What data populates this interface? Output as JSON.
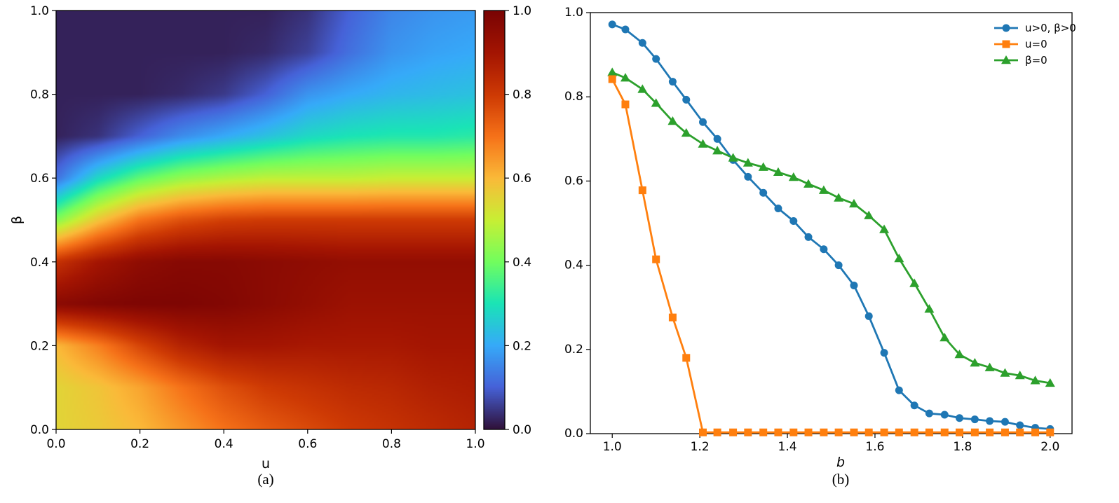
{
  "chart_data": [
    {
      "type": "heatmap",
      "caption": "(a)",
      "xlabel": "u",
      "ylabel": "β",
      "xlim": [
        0,
        1
      ],
      "ylim": [
        0,
        1
      ],
      "xticks": [
        "0.0",
        "0.2",
        "0.4",
        "0.6",
        "0.8",
        "1.0"
      ],
      "yticks": [
        "0.0",
        "0.2",
        "0.4",
        "0.6",
        "0.8",
        "1.0"
      ],
      "colorbar": {
        "min": 0,
        "max": 1,
        "ticks": [
          "0.0",
          "0.2",
          "0.4",
          "0.6",
          "0.8",
          "1.0"
        ],
        "colormap": "turbo"
      },
      "grid_u": [
        0.0,
        0.1,
        0.2,
        0.3,
        0.4,
        0.5,
        0.6,
        0.7,
        0.8,
        0.9,
        1.0
      ],
      "grid_beta": [
        0.0,
        0.1,
        0.2,
        0.3,
        0.4,
        0.5,
        0.6,
        0.7,
        0.8,
        0.9,
        1.0
      ],
      "values": [
        [
          0.55,
          0.57,
          0.6,
          0.65,
          0.7,
          0.74,
          0.77,
          0.8,
          0.82,
          0.84,
          0.86
        ],
        [
          0.55,
          0.58,
          0.63,
          0.7,
          0.76,
          0.8,
          0.82,
          0.84,
          0.85,
          0.87,
          0.88
        ],
        [
          0.6,
          0.68,
          0.78,
          0.86,
          0.9,
          0.9,
          0.89,
          0.89,
          0.89,
          0.9,
          0.9
        ],
        [
          0.96,
          0.98,
          0.99,
          0.99,
          0.98,
          0.96,
          0.94,
          0.92,
          0.92,
          0.92,
          0.92
        ],
        [
          0.82,
          0.9,
          0.95,
          0.97,
          0.97,
          0.96,
          0.95,
          0.94,
          0.94,
          0.94,
          0.94
        ],
        [
          0.42,
          0.58,
          0.7,
          0.76,
          0.79,
          0.8,
          0.8,
          0.8,
          0.8,
          0.8,
          0.8
        ],
        [
          0.12,
          0.28,
          0.38,
          0.44,
          0.47,
          0.49,
          0.49,
          0.49,
          0.5,
          0.5,
          0.5
        ],
        [
          0.02,
          0.04,
          0.1,
          0.16,
          0.2,
          0.24,
          0.28,
          0.3,
          0.31,
          0.31,
          0.32
        ],
        [
          0.02,
          0.02,
          0.02,
          0.03,
          0.05,
          0.1,
          0.17,
          0.2,
          0.22,
          0.23,
          0.24
        ],
        [
          0.02,
          0.02,
          0.02,
          0.02,
          0.02,
          0.03,
          0.06,
          0.12,
          0.17,
          0.19,
          0.2
        ],
        [
          0.02,
          0.02,
          0.02,
          0.02,
          0.02,
          0.02,
          0.04,
          0.1,
          0.15,
          0.17,
          0.18
        ]
      ]
    },
    {
      "type": "line",
      "caption": "(b)",
      "xlabel": "b",
      "xlim": [
        0.95,
        2.05
      ],
      "ylim": [
        0,
        1
      ],
      "xticks": [
        "1.0",
        "1.2",
        "1.4",
        "1.6",
        "1.8",
        "2.0"
      ],
      "yticks": [
        "0.0",
        "0.2",
        "0.4",
        "0.6",
        "0.8",
        "1.0"
      ],
      "legend_position": "top-right",
      "x": [
        1.0,
        1.03,
        1.069,
        1.1,
        1.138,
        1.169,
        1.207,
        1.24,
        1.276,
        1.31,
        1.345,
        1.379,
        1.414,
        1.448,
        1.483,
        1.517,
        1.552,
        1.586,
        1.621,
        1.655,
        1.69,
        1.724,
        1.759,
        1.793,
        1.828,
        1.862,
        1.897,
        1.931,
        1.966,
        2.0
      ],
      "series": [
        {
          "name": "u>0, β>0",
          "color": "#1f77b4",
          "marker": "circle",
          "values": [
            0.972,
            0.96,
            0.928,
            0.89,
            0.836,
            0.793,
            0.74,
            0.7,
            0.65,
            0.61,
            0.572,
            0.535,
            0.505,
            0.467,
            0.438,
            0.4,
            0.352,
            0.279,
            0.192,
            0.103,
            0.067,
            0.048,
            0.045,
            0.037,
            0.034,
            0.03,
            0.028,
            0.02,
            0.014,
            0.011
          ]
        },
        {
          "name": "u=0",
          "color": "#ff7f0e",
          "marker": "square",
          "values": [
            0.842,
            0.782,
            0.578,
            0.414,
            0.276,
            0.18,
            0.003,
            0.003,
            0.003,
            0.003,
            0.003,
            0.003,
            0.003,
            0.003,
            0.003,
            0.003,
            0.003,
            0.003,
            0.003,
            0.003,
            0.003,
            0.003,
            0.003,
            0.003,
            0.003,
            0.003,
            0.003,
            0.003,
            0.003,
            0.003
          ]
        },
        {
          "name": "β=0",
          "color": "#2ca02c",
          "marker": "triangle",
          "values": [
            0.858,
            0.845,
            0.818,
            0.785,
            0.742,
            0.714,
            0.688,
            0.672,
            0.655,
            0.643,
            0.633,
            0.621,
            0.609,
            0.593,
            0.578,
            0.56,
            0.546,
            0.518,
            0.485,
            0.416,
            0.357,
            0.296,
            0.228,
            0.188,
            0.168,
            0.157,
            0.144,
            0.138,
            0.126,
            0.12
          ]
        }
      ]
    }
  ]
}
